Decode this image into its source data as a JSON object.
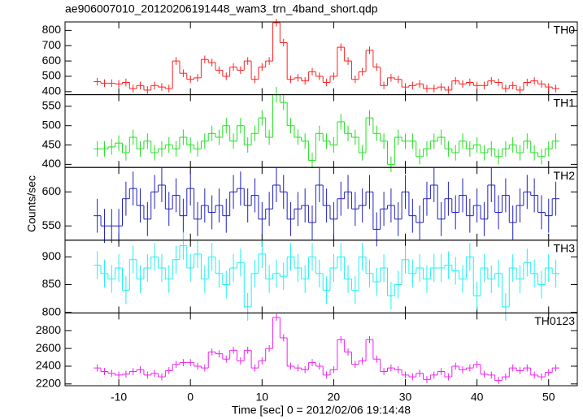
{
  "title": "ae906007010_20120206191448_wam3_trn_4band_short.qdp",
  "x_label": "Time [sec] 0 = 2012/02/06 19:14:48",
  "y_label": "Counts/sec",
  "chart_data": [
    {
      "type": "step",
      "xlim": [
        -17.5,
        54
      ],
      "ylim": [
        380,
        855
      ],
      "yticks": [
        400,
        500,
        600,
        700,
        800
      ],
      "error": 25,
      "x": [
        -13,
        -12,
        -11,
        -10,
        -9,
        -8,
        -7,
        -6,
        -5,
        -4,
        -3,
        -2,
        -1,
        0,
        1,
        2,
        3,
        4,
        5,
        6,
        7,
        8,
        9,
        10,
        11,
        12,
        13,
        14,
        15,
        16,
        17,
        18,
        19,
        20,
        21,
        22,
        23,
        24,
        25,
        26,
        27,
        28,
        29,
        30,
        31,
        32,
        33,
        34,
        35,
        36,
        37,
        38,
        39,
        40,
        41,
        42,
        43,
        44,
        45,
        46,
        47,
        48,
        49,
        50,
        51
      ],
      "series": [
        {
          "name": "TH0",
          "color": "#ff2020",
          "values": [
            465,
            455,
            455,
            450,
            460,
            420,
            440,
            410,
            440,
            430,
            420,
            600,
            520,
            480,
            490,
            610,
            590,
            540,
            500,
            560,
            540,
            600,
            480,
            560,
            600,
            850,
            720,
            480,
            490,
            470,
            530,
            500,
            460,
            500,
            690,
            600,
            480,
            530,
            670,
            560,
            440,
            490,
            480,
            430,
            440,
            450,
            420,
            420,
            430,
            410,
            470,
            450,
            460,
            440,
            440,
            470,
            460,
            420,
            440,
            410,
            460,
            470,
            450,
            430,
            420
          ]
        }
      ]
    },
    {
      "type": "step",
      "xlim": [
        -17.5,
        54
      ],
      "ylim": [
        392,
        580
      ],
      "yticks": [
        400,
        450,
        500,
        550
      ],
      "error": 20,
      "x": [
        -13,
        -12,
        -11,
        -10,
        -9,
        -8,
        -7,
        -6,
        -5,
        -4,
        -3,
        -2,
        -1,
        0,
        1,
        2,
        3,
        4,
        5,
        6,
        7,
        8,
        9,
        10,
        11,
        12,
        13,
        14,
        15,
        16,
        17,
        18,
        19,
        20,
        21,
        22,
        23,
        24,
        25,
        26,
        27,
        28,
        29,
        30,
        31,
        32,
        33,
        34,
        35,
        36,
        37,
        38,
        39,
        40,
        41,
        42,
        43,
        44,
        45,
        46,
        47,
        48,
        49,
        50,
        51
      ],
      "series": [
        {
          "name": "TH1",
          "color": "#20e020",
          "values": [
            440,
            440,
            445,
            455,
            430,
            470,
            440,
            460,
            430,
            440,
            450,
            440,
            470,
            450,
            440,
            460,
            480,
            470,
            500,
            460,
            500,
            450,
            480,
            520,
            470,
            580,
            560,
            500,
            470,
            460,
            410,
            480,
            460,
            450,
            510,
            480,
            470,
            430,
            520,
            480,
            460,
            400,
            470,
            460,
            460,
            420,
            440,
            460,
            470,
            440,
            430,
            460,
            440,
            450,
            430,
            440,
            420,
            440,
            450,
            430,
            460,
            430,
            420,
            440,
            460
          ]
        }
      ]
    },
    {
      "type": "step",
      "xlim": [
        -17.5,
        54
      ],
      "ylim": [
        529,
        636
      ],
      "yticks": [
        550,
        600
      ],
      "error": 25,
      "x": [
        -13,
        -12,
        -11,
        -10,
        -9,
        -8,
        -7,
        -6,
        -5,
        -4,
        -3,
        -2,
        -1,
        0,
        1,
        2,
        3,
        4,
        5,
        6,
        7,
        8,
        9,
        10,
        11,
        12,
        13,
        14,
        15,
        16,
        17,
        18,
        19,
        20,
        21,
        22,
        23,
        24,
        25,
        26,
        27,
        28,
        29,
        30,
        31,
        32,
        33,
        34,
        35,
        36,
        37,
        38,
        39,
        40,
        41,
        42,
        43,
        44,
        45,
        46,
        47,
        48,
        49,
        50,
        51
      ],
      "series": [
        {
          "name": "TH2",
          "color": "#2020c0",
          "values": [
            565,
            550,
            550,
            550,
            590,
            605,
            580,
            560,
            600,
            610,
            575,
            595,
            565,
            605,
            560,
            580,
            570,
            580,
            565,
            600,
            605,
            580,
            595,
            560,
            575,
            610,
            600,
            560,
            575,
            580,
            555,
            610,
            580,
            560,
            590,
            600,
            575,
            580,
            600,
            545,
            575,
            580,
            560,
            600,
            565,
            555,
            590,
            610,
            560,
            590,
            570,
            595,
            565,
            580,
            560,
            610,
            570,
            595,
            555,
            580,
            600,
            595,
            570,
            565,
            590
          ]
        }
      ]
    },
    {
      "type": "step",
      "xlim": [
        -17.5,
        54
      ],
      "ylim": [
        799,
        930
      ],
      "yticks": [
        800,
        850,
        900
      ],
      "error": 25,
      "x": [
        -13,
        -12,
        -11,
        -10,
        -9,
        -8,
        -7,
        -6,
        -5,
        -4,
        -3,
        -2,
        -1,
        0,
        1,
        2,
        3,
        4,
        5,
        6,
        7,
        8,
        9,
        10,
        11,
        12,
        13,
        14,
        15,
        16,
        17,
        18,
        19,
        20,
        21,
        22,
        23,
        24,
        25,
        26,
        27,
        28,
        29,
        30,
        31,
        32,
        33,
        34,
        35,
        36,
        37,
        38,
        39,
        40,
        41,
        42,
        43,
        44,
        45,
        46,
        47,
        48,
        49,
        50,
        51
      ],
      "series": [
        {
          "name": "TH3",
          "color": "#20f0f0",
          "values": [
            885,
            870,
            860,
            880,
            840,
            895,
            860,
            880,
            900,
            880,
            860,
            895,
            920,
            880,
            905,
            860,
            900,
            870,
            850,
            880,
            890,
            810,
            870,
            905,
            860,
            870,
            865,
            900,
            880,
            860,
            900,
            870,
            840,
            880,
            900,
            860,
            840,
            900,
            870,
            855,
            880,
            830,
            850,
            895,
            870,
            880,
            860,
            880,
            880,
            885,
            875,
            860,
            900,
            830,
            880,
            860,
            870,
            810,
            880,
            860,
            890,
            870,
            850,
            880,
            870
          ]
        }
      ]
    },
    {
      "type": "step",
      "xlim": [
        -17.5,
        54
      ],
      "ylim": [
        2180,
        3000
      ],
      "yticks": [
        2200,
        2400,
        2600,
        2800
      ],
      "xticks": [
        -10,
        0,
        10,
        20,
        30,
        40,
        50
      ],
      "error": 40,
      "x": [
        -13,
        -12,
        -11,
        -10,
        -9,
        -8,
        -7,
        -6,
        -5,
        -4,
        -3,
        -2,
        -1,
        0,
        1,
        2,
        3,
        4,
        5,
        6,
        7,
        8,
        9,
        10,
        11,
        12,
        13,
        14,
        15,
        16,
        17,
        18,
        19,
        20,
        21,
        22,
        23,
        24,
        25,
        26,
        27,
        28,
        29,
        30,
        31,
        32,
        33,
        34,
        35,
        36,
        37,
        38,
        39,
        40,
        41,
        42,
        43,
        44,
        45,
        46,
        47,
        48,
        49,
        50,
        51
      ],
      "series": [
        {
          "name": "TH0123",
          "color": "#f020f0",
          "values": [
            2380,
            2340,
            2320,
            2300,
            2310,
            2340,
            2360,
            2300,
            2320,
            2280,
            2350,
            2420,
            2440,
            2440,
            2400,
            2380,
            2560,
            2540,
            2480,
            2580,
            2460,
            2580,
            2380,
            2460,
            2600,
            2950,
            2720,
            2400,
            2380,
            2360,
            2440,
            2400,
            2300,
            2360,
            2700,
            2560,
            2420,
            2460,
            2700,
            2480,
            2340,
            2380,
            2360,
            2300,
            2280,
            2320,
            2250,
            2300,
            2340,
            2280,
            2400,
            2360,
            2380,
            2420,
            2310,
            2300,
            2240,
            2280,
            2380,
            2350,
            2380,
            2300,
            2280,
            2330,
            2380
          ]
        }
      ]
    }
  ]
}
